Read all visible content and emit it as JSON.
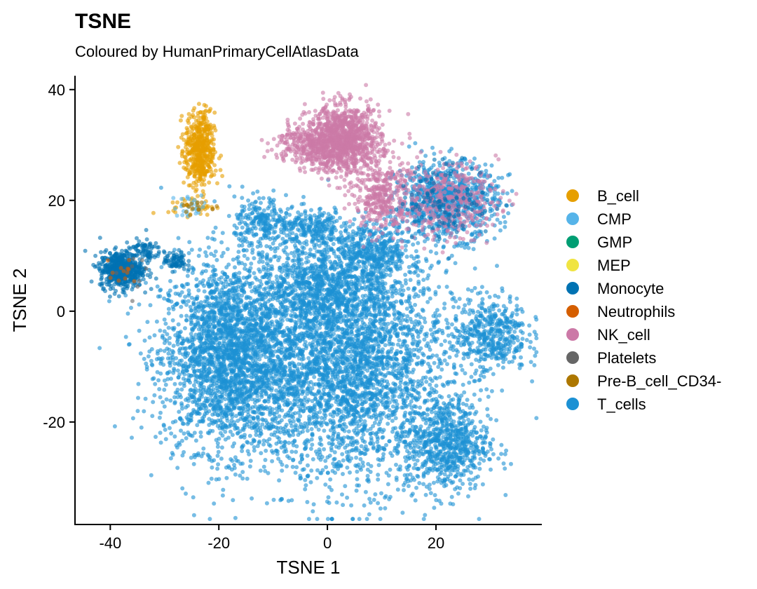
{
  "chart_data": {
    "type": "scatter",
    "title": "TSNE",
    "subtitle": "Coloured by HumanPrimaryCellAtlasData",
    "xlabel": "TSNE 1",
    "ylabel": "TSNE 2",
    "xlim": [
      -46.5,
      39.5
    ],
    "ylim": [
      -38.5,
      42.5
    ],
    "x_ticks": [
      -40,
      -20,
      0,
      20
    ],
    "x_tick_labels": [
      "-40",
      "-20",
      "0",
      "20"
    ],
    "y_ticks": [
      -20,
      0,
      20,
      40
    ],
    "y_tick_labels": [
      "-20",
      "0",
      "20",
      "40"
    ],
    "grid": false,
    "legend_position": "right",
    "series": [
      {
        "name": "B_cell",
        "color": "#E69F00"
      },
      {
        "name": "CMP",
        "color": "#56B4E9"
      },
      {
        "name": "GMP",
        "color": "#009E73"
      },
      {
        "name": "MEP",
        "color": "#F0E442"
      },
      {
        "name": "Monocyte",
        "color": "#0072B2"
      },
      {
        "name": "Neutrophils",
        "color": "#D55E00"
      },
      {
        "name": "NK_cell",
        "color": "#CC79A7"
      },
      {
        "name": "Platelets",
        "color": "#666666"
      },
      {
        "name": "Pre-B_cell_CD34-",
        "color": "#AD7700"
      },
      {
        "name": "T_cells",
        "color": "#1C91D4"
      }
    ],
    "clusters": [
      {
        "label": "T_cells",
        "cx": -18,
        "cy": -8,
        "sx": 7.5,
        "sy": 10,
        "n": 2600
      },
      {
        "label": "T_cells",
        "cx": 4,
        "cy": -10,
        "sx": 11,
        "sy": 12,
        "n": 3200
      },
      {
        "label": "T_cells",
        "cx": 0,
        "cy": 5,
        "sx": 8,
        "sy": 5,
        "n": 900
      },
      {
        "label": "T_cells",
        "cx": 22,
        "cy": -24,
        "sx": 4.5,
        "sy": 5,
        "n": 700
      },
      {
        "label": "T_cells",
        "cx": 30,
        "cy": -4,
        "sx": 4,
        "sy": 4,
        "n": 450
      },
      {
        "label": "T_cells",
        "cx": -12,
        "cy": 16,
        "sx": 3,
        "sy": 2.5,
        "n": 220
      },
      {
        "label": "T_cells",
        "cx": -3,
        "cy": 15,
        "sx": 4,
        "sy": 2,
        "n": 220
      },
      {
        "label": "T_cells",
        "cx": 9,
        "cy": 11,
        "sx": 4,
        "sy": 3,
        "n": 300
      },
      {
        "label": "T_cells",
        "cx": 22,
        "cy": 20,
        "sx": 5.5,
        "sy": 4,
        "n": 900
      },
      {
        "label": "NK_cell",
        "cx": 3,
        "cy": 31,
        "sx": 4,
        "sy": 3.5,
        "n": 1100
      },
      {
        "label": "NK_cell",
        "cx": -4,
        "cy": 30,
        "sx": 3.5,
        "sy": 2,
        "n": 250
      },
      {
        "label": "NK_cell",
        "cx": 10,
        "cy": 21,
        "sx": 3,
        "sy": 4,
        "n": 350
      },
      {
        "label": "NK_cell",
        "cx": 22,
        "cy": 20,
        "sx": 5.5,
        "sy": 4,
        "n": 400
      },
      {
        "label": "B_cell",
        "cx": -23.5,
        "cy": 29,
        "sx": 1.6,
        "sy": 4,
        "n": 500
      },
      {
        "label": "B_cell",
        "cx": -25,
        "cy": 19,
        "sx": 2.5,
        "sy": 1,
        "n": 40
      },
      {
        "label": "Monocyte",
        "cx": -38,
        "cy": 7.5,
        "sx": 2.3,
        "sy": 1.9,
        "n": 550
      },
      {
        "label": "Monocyte",
        "cx": -34,
        "cy": 11,
        "sx": 2,
        "sy": 1.2,
        "n": 80
      },
      {
        "label": "Monocyte",
        "cx": -28,
        "cy": 9,
        "sx": 1.2,
        "sy": 1,
        "n": 70
      },
      {
        "label": "Monocyte",
        "cx": 22,
        "cy": 20,
        "sx": 5,
        "sy": 4,
        "n": 120
      },
      {
        "label": "CMP",
        "cx": -25,
        "cy": 19,
        "sx": 2,
        "sy": 1.2,
        "n": 30
      },
      {
        "label": "Neutrophils",
        "cx": -38,
        "cy": 7,
        "sx": 2,
        "sy": 2,
        "n": 12
      },
      {
        "label": "Pre-B_cell_CD34-",
        "cx": -24,
        "cy": 19,
        "sx": 2,
        "sy": 1,
        "n": 15
      },
      {
        "label": "Platelets",
        "cx": -37,
        "cy": 7,
        "sx": 2,
        "sy": 2,
        "n": 8
      }
    ]
  }
}
